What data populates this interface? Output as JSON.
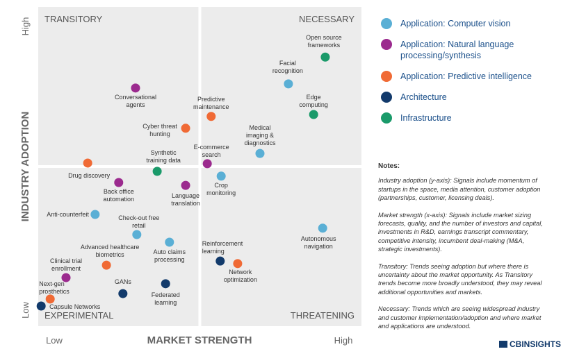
{
  "chart_data": {
    "type": "scatter",
    "x_label": "MARKET STRENGTH",
    "y_label": "INDUSTRY ADOPTION",
    "x_low": "Low",
    "x_high": "High",
    "y_low": "Low",
    "y_high": "High",
    "quadrants": {
      "top_left": "TRANSITORY",
      "top_right": "NECESSARY",
      "bottom_left": "EXPERIMENTAL",
      "bottom_right": "THREATENING"
    },
    "xlim": [
      0,
      100
    ],
    "ylim": [
      0,
      100
    ],
    "series": [
      {
        "name": "Application: Computer vision",
        "color": "#5aafd5",
        "x": [
          77.4,
          68.6,
          56.6,
          17.6,
          30.5,
          88.0,
          40.6
        ],
        "y": [
          75.9,
          54.1,
          47.0,
          35.0,
          28.7,
          30.7,
          26.3
        ],
        "labels": [
          "Facial\nrecognition",
          "Medical\nimaging &\ndiagnostics",
          "Crop\nmonitoring",
          "Anti-counterfeit",
          "Check-out free\nretail",
          "Autonomous\nnavigation",
          "Auto claims\nprocessing"
        ]
      },
      {
        "name": "Application: Natural language processing/synthesis",
        "color": "#9b2a8e",
        "x": [
          30.1,
          52.3,
          24.9,
          45.6,
          8.6
        ],
        "y": [
          74.6,
          50.9,
          45.0,
          44.1,
          15.2
        ],
        "labels": [
          "Conversational\nagents",
          "E-commerce\nsearch",
          "Back office\nautomation",
          "Language\ntranslation",
          "Clinical trial\nenrollment"
        ]
      },
      {
        "name": "Application: Predictive intelligence",
        "color": "#f06a35",
        "x": [
          53.5,
          45.6,
          15.3,
          21.1,
          61.7,
          3.7
        ],
        "y": [
          65.7,
          62.0,
          51.1,
          19.1,
          19.6,
          8.5
        ],
        "labels": [
          "Predictive\nmaintenance",
          "Cyber threat\nhunting",
          "Drug discovery",
          "Advanced healthcare\nbiometrics",
          "Network\noptimization",
          "Next-gen\nprosthetics"
        ]
      },
      {
        "name": "Architecture",
        "color": "#123a6b",
        "x": [
          56.3,
          39.4,
          26.2,
          0.9
        ],
        "y": [
          20.4,
          13.3,
          10.2,
          6.3
        ],
        "labels": [
          "Reinforcement\nlearning",
          "Federated\nlearning",
          "GANs",
          "Capsule Networks"
        ]
      },
      {
        "name": "Infrastructure",
        "color": "#1a9a6a",
        "x": [
          88.8,
          85.2,
          36.8
        ],
        "y": [
          84.3,
          66.3,
          48.5
        ],
        "labels": [
          "Open source\nframeworks",
          "Edge\ncomputing",
          "Synthetic\ntraining data"
        ]
      }
    ]
  },
  "notes": {
    "title": "Notes:",
    "paragraphs": [
      "Industry adoption (y-axis): Signals include momentum of startups in the space, media attention, customer adoption (partnerships, customer, licensing deals).",
      "Market strength (x-axis): Signals include market sizing forecasts, quality, and the number of investors and capital, investments in R&D, earnings transcript commentary, competitive intensity, incumbent deal-making (M&A, strategic investments).",
      "Transitory: Trends seeing adoption but where there is uncertainty about the market opportunity. As Transitory trends become more broadly understood, they may reveal additional opportunities and markets.",
      "Necessary: Trends which are seeing widespread industry and customer implementation/adoption and where market and applications are understood."
    ]
  },
  "logo": "CBINSIGHTS"
}
